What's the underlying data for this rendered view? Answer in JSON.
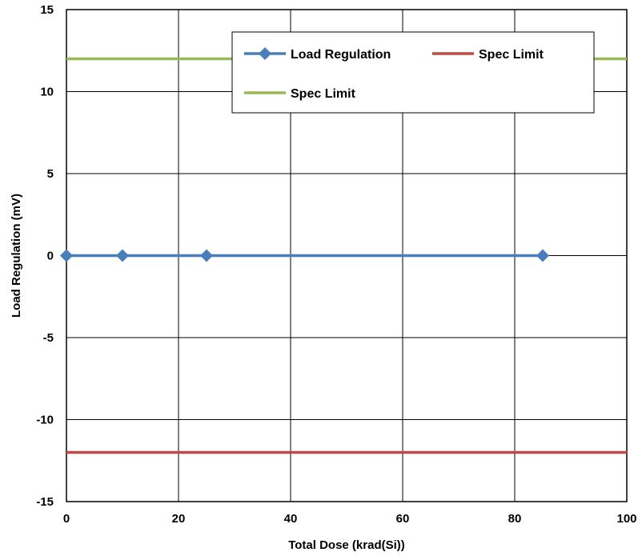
{
  "chart_data": {
    "type": "line",
    "xlabel": "Total Dose (krad(Si))",
    "ylabel": "Load Regulation (mV)",
    "xlim": [
      0,
      100
    ],
    "ylim": [
      -15,
      15
    ],
    "x_ticks": [
      0,
      20,
      40,
      60,
      80,
      100
    ],
    "y_ticks": [
      -15,
      -10,
      -5,
      0,
      5,
      10,
      15
    ],
    "grid": true,
    "legend_position": "top-right",
    "series": [
      {
        "name": "Load Regulation",
        "color": "#4a7ebb",
        "marker": "diamond",
        "x": [
          0,
          10,
          25,
          85
        ],
        "y": [
          0,
          0,
          0,
          0
        ]
      },
      {
        "name": "Spec Limit",
        "color": "#be4b48",
        "marker": "none",
        "x": [
          0,
          100
        ],
        "y": [
          -12,
          -12
        ]
      },
      {
        "name": "Spec Limit",
        "color": "#98b954",
        "marker": "none",
        "x": [
          0,
          100
        ],
        "y": [
          12,
          12
        ]
      }
    ]
  }
}
